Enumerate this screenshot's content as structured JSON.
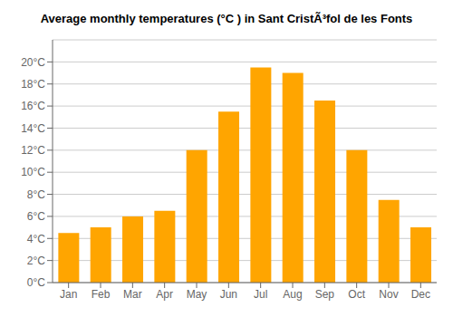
{
  "chart_data": {
    "type": "bar",
    "title": "Average monthly temperatures (°C ) in Sant CristÃ³fol de les Fonts",
    "categories": [
      "Jan",
      "Feb",
      "Mar",
      "Apr",
      "May",
      "Jun",
      "Jul",
      "Aug",
      "Sep",
      "Oct",
      "Nov",
      "Dec"
    ],
    "values": [
      4.5,
      5.0,
      6.0,
      6.5,
      12.0,
      15.5,
      19.5,
      19.0,
      16.5,
      12.0,
      7.5,
      5.0
    ],
    "color": "#FFA500",
    "ylim": [
      0,
      22
    ],
    "yticks": [
      {
        "value": 0,
        "label": "0°C"
      },
      {
        "value": 2,
        "label": "2°C"
      },
      {
        "value": 4,
        "label": "4°C"
      },
      {
        "value": 6,
        "label": "6°C"
      },
      {
        "value": 8,
        "label": "8°C"
      },
      {
        "value": 10,
        "label": "10°C"
      },
      {
        "value": 12,
        "label": "12°C"
      },
      {
        "value": 14,
        "label": "14°C"
      },
      {
        "value": 16,
        "label": "16°C"
      },
      {
        "value": 18,
        "label": "18°C"
      },
      {
        "value": 20,
        "label": "20°C"
      }
    ],
    "grid": true
  }
}
